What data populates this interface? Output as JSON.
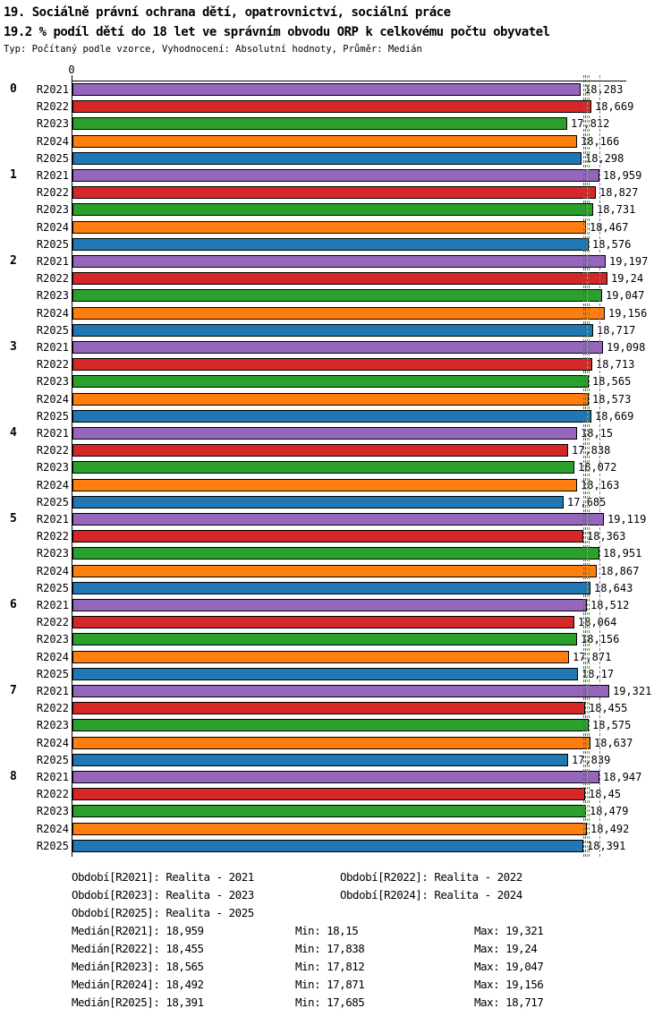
{
  "header": {
    "title": "19. Sociálně právní ochrana dětí, opatrovnictví, sociální práce",
    "subtitle": "19.2 % podíl dětí do 18 let ve správním obvodu ORP k celkovému počtu obyvatel",
    "meta": "Typ: Počítaný podle vzorce, Vyhodnocení: Absolutní hodnoty, Průměr: Medián"
  },
  "chart_data": {
    "type": "bar",
    "orientation": "horizontal",
    "title": "19. Sociálně právní ochrana dětí, opatrovnictví, sociální práce",
    "subtitle": "19.2 % podíl dětí do 18 let ve správním obvodu ORP k celkovému počtu obyvatel",
    "axis_origin_label": "0",
    "xlim": [
      0,
      19.9
    ],
    "grid": false,
    "series": [
      {
        "name": "R2021",
        "color": "#9467BD",
        "median": 18.959,
        "median_label": "18,959"
      },
      {
        "name": "R2022",
        "color": "#D62728",
        "median": 18.455,
        "median_label": "18,455"
      },
      {
        "name": "R2023",
        "color": "#2CA02C",
        "median": 18.565,
        "median_label": "18,565"
      },
      {
        "name": "R2024",
        "color": "#FF7F0E",
        "median": 18.492,
        "median_label": "18,492"
      },
      {
        "name": "R2025",
        "color": "#1F77B4",
        "median": 18.391,
        "median_label": "18,391"
      }
    ],
    "groups": [
      {
        "name": "0",
        "values": [
          18.283,
          18.669,
          17.812,
          18.166,
          18.298
        ],
        "labels": [
          "18,283",
          "18,669",
          "17,812",
          "18,166",
          "18,298"
        ]
      },
      {
        "name": "1",
        "values": [
          18.959,
          18.827,
          18.731,
          18.467,
          18.576
        ],
        "labels": [
          "18,959",
          "18,827",
          "18,731",
          "18,467",
          "18,576"
        ]
      },
      {
        "name": "2",
        "values": [
          19.197,
          19.24,
          19.047,
          19.156,
          18.717
        ],
        "labels": [
          "19,197",
          "19,24",
          "19,047",
          "19,156",
          "18,717"
        ]
      },
      {
        "name": "3",
        "values": [
          19.098,
          18.713,
          18.565,
          18.573,
          18.669
        ],
        "labels": [
          "19,098",
          "18,713",
          "18,565",
          "18,573",
          "18,669"
        ]
      },
      {
        "name": "4",
        "values": [
          18.15,
          17.838,
          18.072,
          18.163,
          17.685
        ],
        "labels": [
          "18,15",
          "17,838",
          "18,072",
          "18,163",
          "17,685"
        ]
      },
      {
        "name": "5",
        "values": [
          19.119,
          18.363,
          18.951,
          18.867,
          18.643
        ],
        "labels": [
          "19,119",
          "18,363",
          "18,951",
          "18,867",
          "18,643"
        ]
      },
      {
        "name": "6",
        "values": [
          18.512,
          18.064,
          18.156,
          17.871,
          18.17
        ],
        "labels": [
          "18,512",
          "18,064",
          "18,156",
          "17,871",
          "18,17"
        ]
      },
      {
        "name": "7",
        "values": [
          19.321,
          18.455,
          18.575,
          18.637,
          17.839
        ],
        "labels": [
          "19,321",
          "18,455",
          "18,575",
          "18,637",
          "17,839"
        ]
      },
      {
        "name": "8",
        "values": [
          18.947,
          18.45,
          18.479,
          18.492,
          18.391
        ],
        "labels": [
          "18,947",
          "18,45",
          "18,479",
          "18,492",
          "18,391"
        ]
      }
    ]
  },
  "legend": {
    "periods": [
      "Období[R2021]: Realita - 2021",
      "Období[R2022]: Realita - 2022",
      "Období[R2023]: Realita - 2023",
      "Období[R2024]: Realita - 2024",
      "Období[R2025]: Realita - 2025"
    ],
    "stats": [
      {
        "median": "Medián[R2021]: 18,959",
        "min": "Min: 18,15",
        "max": "Max: 19,321"
      },
      {
        "median": "Medián[R2022]: 18,455",
        "min": "Min: 17,838",
        "max": "Max: 19,24"
      },
      {
        "median": "Medián[R2023]: 18,565",
        "min": "Min: 17,812",
        "max": "Max: 19,047"
      },
      {
        "median": "Medián[R2024]: 18,492",
        "min": "Min: 17,871",
        "max": "Max: 19,156"
      },
      {
        "median": "Medián[R2025]: 18,391",
        "min": "Min: 17,685",
        "max": "Max: 18,717"
      }
    ]
  }
}
